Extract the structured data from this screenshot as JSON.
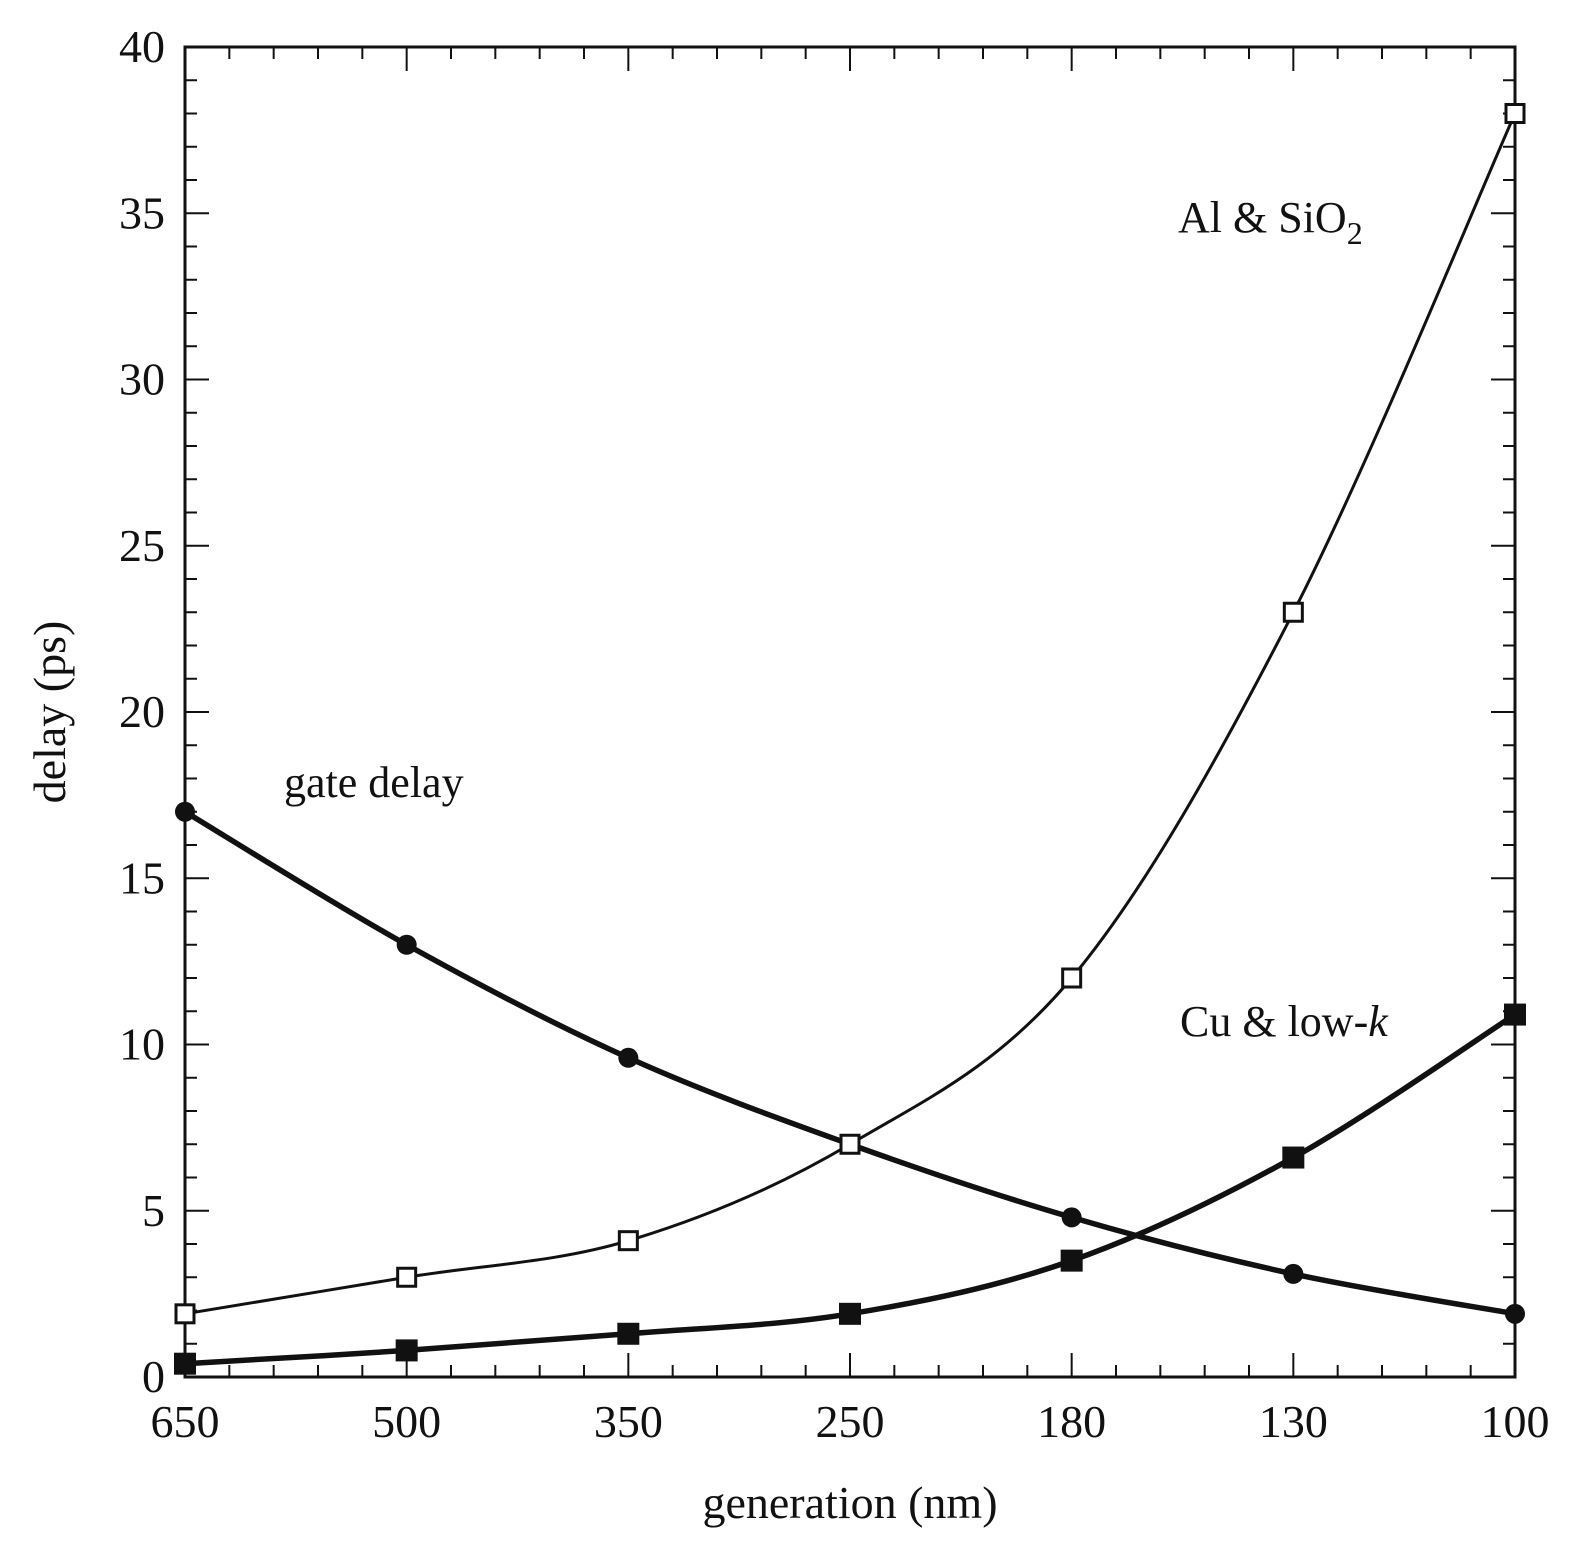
{
  "chart_data": {
    "type": "line",
    "title": "",
    "xlabel": "generation (nm)",
    "ylabel": "delay (ps)",
    "categories": [
      "650",
      "500",
      "350",
      "250",
      "180",
      "130",
      "100"
    ],
    "ylim": [
      0,
      40
    ],
    "yticks": [
      "0",
      "5",
      "10",
      "15",
      "20",
      "25",
      "30",
      "35",
      "40"
    ],
    "grid": false,
    "series": [
      {
        "name": "gate delay",
        "marker": "filled-circle",
        "weight": "bold",
        "values": [
          17,
          13,
          9.6,
          7.0,
          4.8,
          3.1,
          1.9
        ]
      },
      {
        "name": "Al & SiO2",
        "marker": "open-square",
        "weight": "normal",
        "values": [
          1.9,
          3.0,
          4.1,
          7.0,
          12.0,
          23.0,
          38.0
        ]
      },
      {
        "name": "Cu & low-k",
        "marker": "filled-square",
        "weight": "bold",
        "values": [
          0.4,
          0.8,
          1.3,
          1.9,
          3.5,
          6.6,
          10.9
        ]
      }
    ],
    "annotations": {
      "gate": "gate delay",
      "al_main": "Al & SiO",
      "al_sub": "2",
      "cu_main": "Cu & low-",
      "cu_italic": "k"
    }
  }
}
